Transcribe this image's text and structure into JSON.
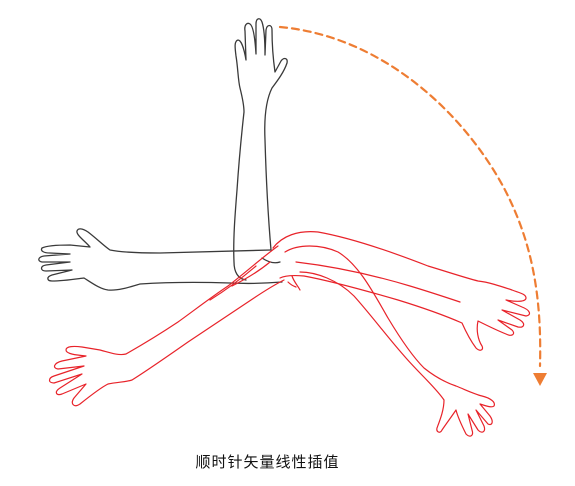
{
  "caption": "顺时针矢量线性插值",
  "colors": {
    "original_arm": "#3a3a3a",
    "interpolated_arm": "#e8232a",
    "rotation_arrow": "#ee7d33"
  },
  "icons": {
    "rotation_arrow": "dashed-clockwise-arc-arrow-icon"
  }
}
